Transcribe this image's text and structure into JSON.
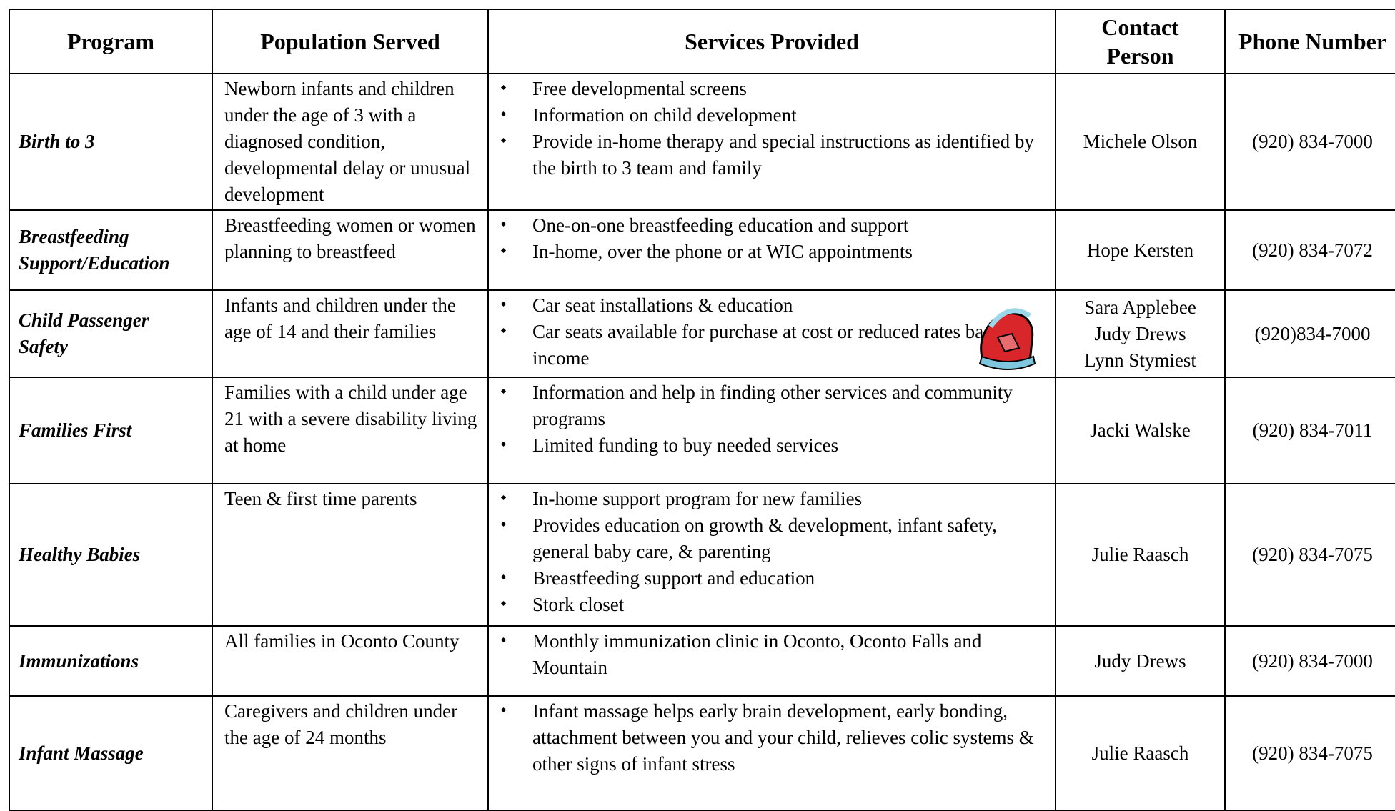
{
  "table": {
    "headers": [
      "Program",
      "Population Served",
      "Services Provided",
      "Contact Person",
      "Phone Number"
    ],
    "rows": [
      {
        "program": "Birth to 3",
        "population": "Newborn infants and children under the age of 3 with a diagnosed condition, developmental delay or unusual development",
        "services": [
          "Free developmental screens",
          "Information on child development",
          "Provide in-home therapy and special instructions as identified by the birth to 3 team and family"
        ],
        "contact": [
          "Michele Olson"
        ],
        "phone": "(920) 834-7000"
      },
      {
        "program": "Breastfeeding Support/Education",
        "population": "Breastfeeding women or women planning to breastfeed",
        "services": [
          "One-on-one breastfeeding education and support",
          "In-home, over the phone or at WIC appointments"
        ],
        "contact": [
          "Hope Kersten"
        ],
        "phone": "(920) 834-7072"
      },
      {
        "program": "Child Passenger Safety",
        "population": "Infants and children under the age of 14 and their families",
        "services": [
          "Car seat installations & education",
          "Car seats available for purchase at cost or reduced rates based on income"
        ],
        "contact": [
          "Sara Applebee",
          "Judy Drews",
          "Lynn Stymiest"
        ],
        "phone": "(920)834-7000"
      },
      {
        "program": "Families First",
        "population": "Families with a child under age 21 with a severe disability living at home",
        "services": [
          "Information and help in finding other services and community programs",
          "Limited funding to buy needed services"
        ],
        "contact": [
          "Jacki Walske"
        ],
        "phone": "(920) 834-7011"
      },
      {
        "program": "Healthy Babies",
        "population": "Teen & first time parents",
        "services": [
          "In-home support program for new families",
          "Provides education on growth & development, infant safety, general baby care, & parenting",
          "Breastfeeding support and education",
          "Stork closet"
        ],
        "contact": [
          "Julie Raasch"
        ],
        "phone": "(920) 834-7075"
      },
      {
        "program": "Immunizations",
        "population": "All families in Oconto County",
        "services": [
          "Monthly immunization clinic in Oconto, Oconto Falls and Mountain"
        ],
        "contact": [
          "Judy Drews"
        ],
        "phone": "(920) 834-7000"
      },
      {
        "program": "Infant Massage",
        "population": "Caregivers and children under the age of 24 months",
        "services": [
          "Infant massage helps early brain development, early bonding, attachment between you and your child, relieves colic systems & other signs of infant stress"
        ],
        "contact": [
          "Julie Raasch"
        ],
        "phone": "(920) 834-7075"
      }
    ]
  }
}
